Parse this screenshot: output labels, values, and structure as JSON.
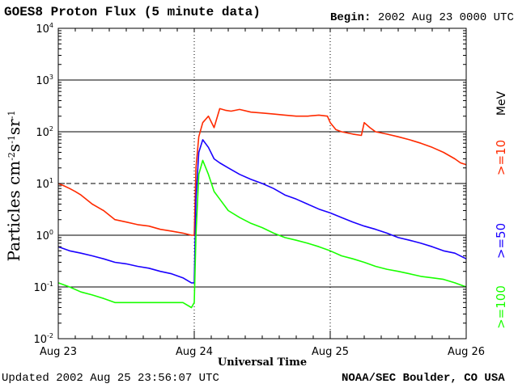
{
  "header": {
    "title": "GOES8 Proton Flux (5 minute data)",
    "begin_label": "Begin:",
    "begin_value": "2002 Aug 23 0000 UTC"
  },
  "footer": {
    "updated_label": "Updated",
    "updated_value": "2002 Aug 25 23:56:07 UTC",
    "source": "NOAA/SEC Boulder, CO USA"
  },
  "colors": {
    "series_10": "#ff2a00",
    "series_50": "#1a00ff",
    "series_100": "#19ff00",
    "axes": "#000000",
    "grid": "#000000"
  },
  "chart_data": {
    "type": "line",
    "title": "GOES8 Proton Flux (5 minute data)",
    "xlabel": "Universal Time",
    "ylabel": "Particles cm-2s-1sr-1",
    "y_scale": "log",
    "ylim": [
      0.01,
      10000
    ],
    "xlim": [
      0,
      72
    ],
    "x_unit": "hours since 2002 Aug 23 0000 UTC",
    "x_ticks": [
      {
        "x": 0,
        "label": "Aug 23"
      },
      {
        "x": 24,
        "label": "Aug 24"
      },
      {
        "x": 48,
        "label": "Aug 25"
      },
      {
        "x": 72,
        "label": "Aug 26"
      }
    ],
    "y_ticks": [
      {
        "value": 0.01,
        "base": "10",
        "exp": "-2"
      },
      {
        "value": 0.1,
        "base": "10",
        "exp": "-1"
      },
      {
        "value": 1,
        "base": "10",
        "exp": "0"
      },
      {
        "value": 10,
        "base": "10",
        "exp": "1"
      },
      {
        "value": 100,
        "base": "10",
        "exp": "2"
      },
      {
        "value": 1000,
        "base": "10",
        "exp": "3"
      },
      {
        "value": 10000,
        "base": "10",
        "exp": "4"
      }
    ],
    "gridlines": [
      {
        "value": 0.1,
        "style": "solid"
      },
      {
        "value": 1,
        "style": "solid"
      },
      {
        "value": 10,
        "style": "dashed"
      },
      {
        "value": 100,
        "style": "solid"
      },
      {
        "value": 1000,
        "style": "solid"
      }
    ],
    "unit_label": "MeV",
    "series": [
      {
        "name": ">=10",
        "color": "#ff2a00",
        "x": [
          0,
          1,
          2,
          3,
          4,
          6,
          8,
          10,
          12,
          14,
          16,
          18,
          20,
          22,
          23.5,
          24,
          24.3,
          24.8,
          25.5,
          26.5,
          27.5,
          28.5,
          29.5,
          30.5,
          32,
          34,
          36,
          38,
          40,
          42,
          44,
          46,
          47.5,
          48,
          49,
          50,
          52,
          53.5,
          54,
          55,
          56,
          58,
          60,
          62,
          64,
          66,
          68,
          70,
          71,
          72
        ],
        "values": [
          10,
          9,
          8,
          7,
          6,
          4,
          3,
          2,
          1.8,
          1.6,
          1.5,
          1.3,
          1.2,
          1.1,
          1.0,
          1.0,
          20,
          80,
          150,
          200,
          120,
          280,
          260,
          250,
          270,
          240,
          230,
          220,
          210,
          200,
          200,
          210,
          200,
          150,
          110,
          100,
          90,
          85,
          150,
          120,
          100,
          90,
          80,
          70,
          60,
          50,
          40,
          30,
          25,
          23
        ]
      },
      {
        "name": ">=50",
        "color": "#1a00ff",
        "x": [
          0,
          2,
          4,
          6,
          8,
          10,
          12,
          14,
          16,
          18,
          20,
          22,
          23.5,
          24,
          24.3,
          24.8,
          25.5,
          26.5,
          27.5,
          28.5,
          30,
          32,
          34,
          36,
          38,
          40,
          42,
          44,
          46,
          48,
          50,
          52,
          54,
          56,
          58,
          60,
          62,
          64,
          66,
          68,
          70,
          72
        ],
        "values": [
          0.6,
          0.5,
          0.45,
          0.4,
          0.35,
          0.3,
          0.28,
          0.25,
          0.23,
          0.2,
          0.18,
          0.15,
          0.12,
          0.12,
          5,
          40,
          70,
          50,
          30,
          25,
          20,
          15,
          12,
          10,
          8,
          6,
          5,
          4,
          3.2,
          2.7,
          2.2,
          1.8,
          1.5,
          1.3,
          1.1,
          0.9,
          0.8,
          0.7,
          0.6,
          0.5,
          0.45,
          0.35
        ]
      },
      {
        "name": ">=100",
        "color": "#19ff00",
        "x": [
          0,
          2,
          4,
          6,
          8,
          10,
          12,
          14,
          16,
          18,
          20,
          22,
          23.5,
          24,
          24.3,
          24.8,
          25.5,
          26.5,
          27.5,
          28.5,
          30,
          32,
          34,
          36,
          38,
          40,
          42,
          44,
          46,
          48,
          50,
          52,
          54,
          56,
          58,
          60,
          62,
          64,
          66,
          68,
          70,
          72
        ],
        "values": [
          0.12,
          0.1,
          0.08,
          0.07,
          0.06,
          0.05,
          0.05,
          0.05,
          0.05,
          0.05,
          0.05,
          0.05,
          0.04,
          0.05,
          1,
          15,
          28,
          15,
          7,
          5,
          3,
          2.2,
          1.7,
          1.4,
          1.1,
          0.9,
          0.8,
          0.7,
          0.6,
          0.5,
          0.4,
          0.35,
          0.3,
          0.25,
          0.22,
          0.2,
          0.18,
          0.16,
          0.15,
          0.14,
          0.12,
          0.1
        ]
      }
    ],
    "legend": [
      {
        "label": ">=10",
        "color": "#ff2a00"
      },
      {
        "label": ">=50",
        "color": "#1a00ff"
      },
      {
        "label": ">=100",
        "color": "#19ff00"
      }
    ],
    "legend_placement": "right, vertical"
  }
}
